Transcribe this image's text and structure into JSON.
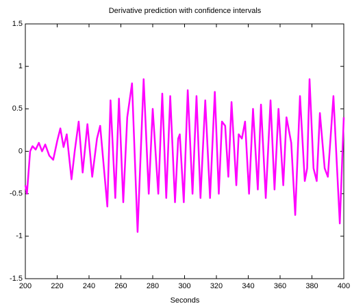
{
  "chart_data": {
    "type": "line",
    "title": "Derivative prediction with confidence intervals",
    "xlabel": "Seconds",
    "x": [
      200,
      201,
      203,
      204.5,
      206.5,
      208.5,
      210.5,
      212.5,
      215,
      217.5,
      220,
      222,
      224,
      226,
      229,
      231,
      233.5,
      236,
      239,
      242,
      245,
      247,
      251.5,
      253.5,
      256.5,
      258.8,
      261.5,
      264,
      267,
      270.5,
      274.3,
      277.5,
      280,
      283.5,
      286,
      288.5,
      291,
      294,
      296,
      297,
      299.5,
      302,
      305,
      307.5,
      310,
      313,
      316,
      319,
      321.5,
      323.5,
      325.5,
      327.5,
      329.5,
      332.5,
      334,
      336,
      338,
      340.5,
      343,
      346,
      348,
      351,
      354,
      356.5,
      359,
      362,
      364,
      367,
      369.5,
      372.5,
      375.5,
      377,
      378.5,
      381,
      383,
      385,
      388,
      390,
      393.5,
      397.5,
      400
    ],
    "series": [
      {
        "color": "#ff00ff",
        "values": [
          -0.4,
          -0.5,
          0.0,
          0.06,
          0.02,
          0.1,
          0.0,
          0.08,
          -0.05,
          -0.1,
          0.12,
          0.27,
          0.05,
          0.2,
          -0.33,
          0.0,
          0.35,
          -0.25,
          0.32,
          -0.3,
          0.15,
          0.3,
          -0.65,
          0.6,
          -0.55,
          0.62,
          -0.6,
          0.4,
          0.8,
          -0.95,
          0.85,
          -0.5,
          0.5,
          -0.5,
          0.68,
          -0.55,
          0.65,
          -0.6,
          0.15,
          0.2,
          -0.6,
          0.72,
          -0.5,
          0.65,
          -0.55,
          0.6,
          -0.55,
          0.7,
          -0.5,
          0.35,
          0.3,
          -0.3,
          0.58,
          -0.4,
          0.2,
          0.15,
          0.35,
          -0.5,
          0.5,
          -0.45,
          0.55,
          -0.55,
          0.6,
          -0.45,
          0.5,
          -0.4,
          0.4,
          0.1,
          -0.75,
          0.65,
          -0.35,
          -0.2,
          0.85,
          -0.2,
          -0.35,
          0.45,
          -0.2,
          -0.3,
          0.65,
          -0.85,
          0.4
        ]
      }
    ],
    "xlim": [
      200,
      400
    ],
    "xticks": [
      200,
      220,
      240,
      260,
      280,
      300,
      320,
      340,
      360,
      380,
      400
    ],
    "ylim": [
      -1.5,
      1.5
    ],
    "yticks": [
      -1.5,
      -1,
      -0.5,
      0,
      0.5,
      1,
      1.5
    ],
    "grid": false
  }
}
